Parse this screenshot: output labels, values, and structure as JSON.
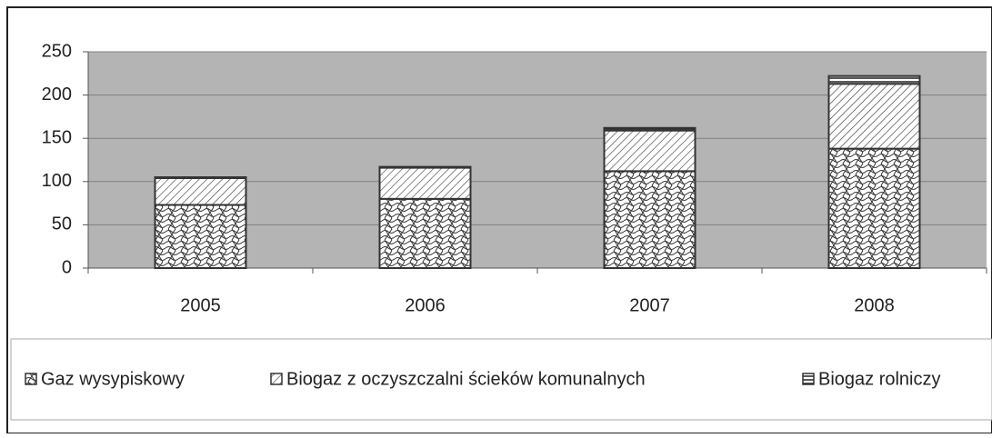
{
  "chart_data": {
    "type": "stacked_bar",
    "categories": [
      "2005",
      "2006",
      "2007",
      "2008"
    ],
    "series": [
      {
        "name": "Gaz wysypiskowy",
        "color": "#333333",
        "pattern": "wave",
        "values": [
          73,
          80,
          112,
          138
        ]
      },
      {
        "name": "Biogaz z oczyszczalni ścieków komunalnych",
        "color": "#333333",
        "pattern": "diagonal",
        "values": [
          31,
          36,
          47,
          75
        ]
      },
      {
        "name": "Biogaz rolniczy",
        "color": "#333333",
        "pattern": "horizontal",
        "values": [
          1,
          1,
          3,
          9
        ]
      }
    ],
    "ylim": [
      0,
      250
    ],
    "yticks": [
      0,
      50,
      100,
      150,
      200,
      250
    ],
    "grid": true,
    "plot_background": "#b4b4b4",
    "legend": "bottom"
  }
}
